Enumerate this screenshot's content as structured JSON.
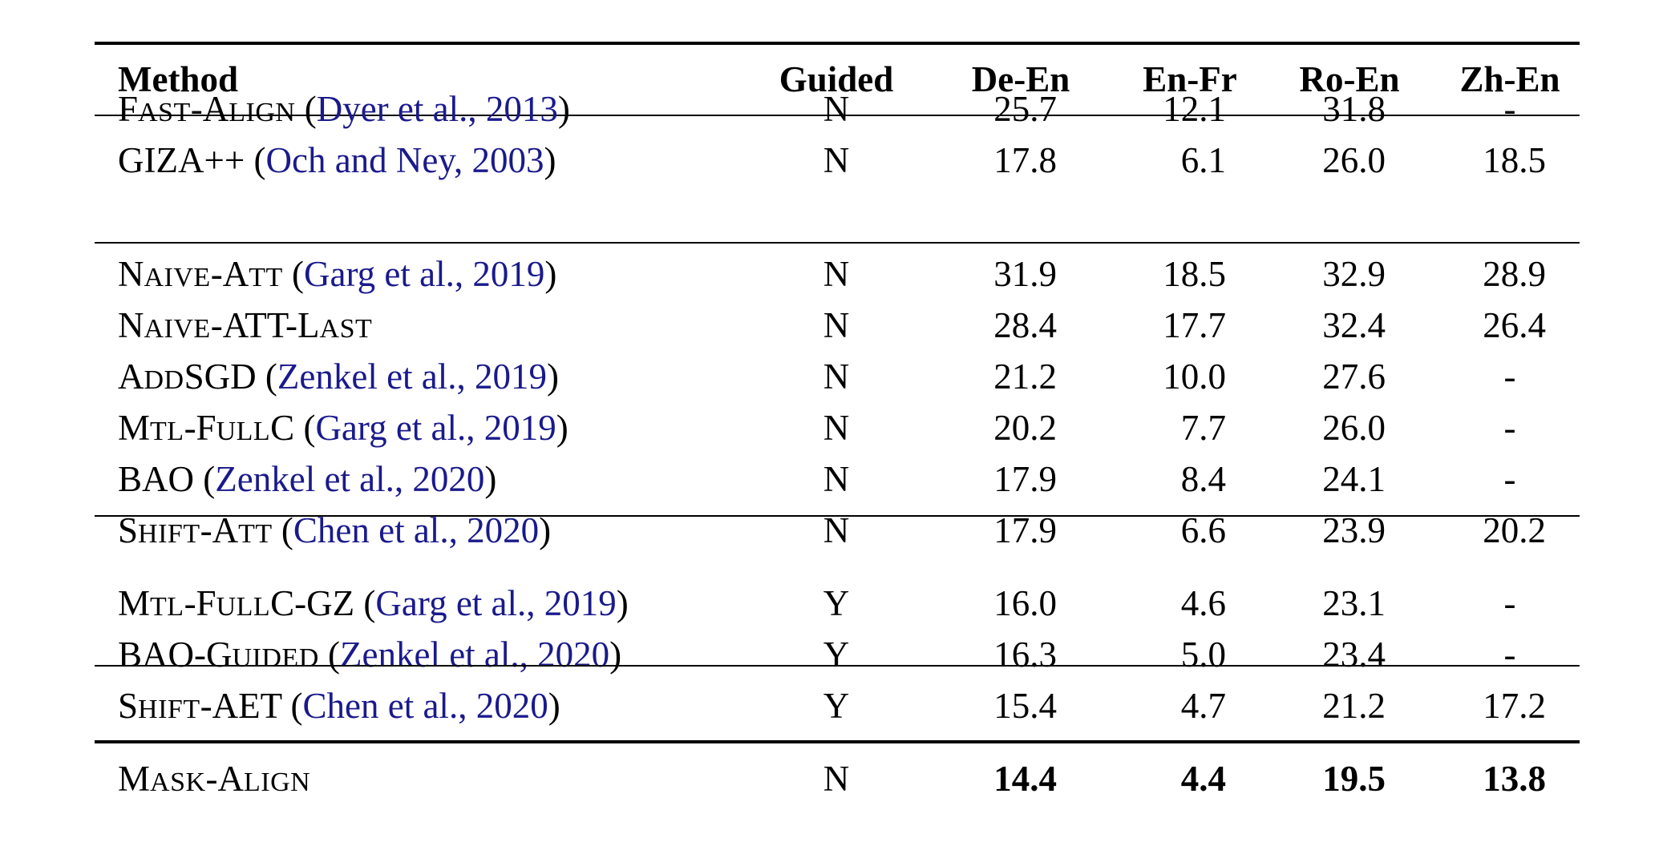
{
  "header": {
    "method": "Method",
    "guided": "Guided",
    "de_en": "De-En",
    "en_fr": "En-Fr",
    "ro_en": "Ro-En",
    "zh_en": "Zh-En"
  },
  "rows": [
    {
      "name_parts": [
        "F",
        "AST",
        "-A",
        "LIGN"
      ],
      "open": " (",
      "cite": "Dyer et al., 2013",
      "close": ")",
      "guided": "N",
      "de_en": "25.7",
      "en_fr": "12.1",
      "ro_en": "31.8",
      "zh_en": "-"
    },
    {
      "name_parts": [
        "GIZA++",
        "",
        "",
        ""
      ],
      "open": " (",
      "cite": "Och and Ney, 2003",
      "close": ")",
      "guided": "N",
      "de_en": "17.8",
      "en_fr": "6.1",
      "ro_en": "26.0",
      "zh_en": "18.5"
    },
    {
      "name_parts": [
        "N",
        "AIVE",
        "-A",
        "TT"
      ],
      "open": " (",
      "cite": "Garg et al., 2019",
      "close": ")",
      "guided": "N",
      "de_en": "31.9",
      "en_fr": "18.5",
      "ro_en": "32.9",
      "zh_en": "28.9"
    },
    {
      "name_parts": [
        "N",
        "AIVE",
        "-A",
        "TT-L",
        "AST"
      ],
      "open": "",
      "cite": "",
      "close": "",
      "guided": "N",
      "de_en": "28.4",
      "en_fr": "17.7",
      "ro_en": "32.4",
      "zh_en": "26.4"
    },
    {
      "name_parts": [
        "A",
        "DD",
        "SGD",
        ""
      ],
      "open": " (",
      "cite": "Zenkel et al., 2019",
      "close": ")",
      "guided": "N",
      "de_en": "21.2",
      "en_fr": "10.0",
      "ro_en": "27.6",
      "zh_en": "-"
    },
    {
      "name_parts": [
        "M",
        "TL",
        "-F",
        "ULL",
        "C"
      ],
      "open": " (",
      "cite": "Garg et al., 2019",
      "close": ")",
      "guided": "N",
      "de_en": "20.2",
      "en_fr": "7.7",
      "ro_en": "26.0",
      "zh_en": "-"
    },
    {
      "name_parts": [
        "BAO",
        "",
        "",
        ""
      ],
      "open": " (",
      "cite": "Zenkel et al., 2020",
      "close": ")",
      "guided": "N",
      "de_en": "17.9",
      "en_fr": "8.4",
      "ro_en": "24.1",
      "zh_en": "-"
    },
    {
      "name_parts": [
        "S",
        "HIFT",
        "-A",
        "TT"
      ],
      "open": " (",
      "cite": "Chen et al., 2020",
      "close": ")",
      "guided": "N",
      "de_en": "17.9",
      "en_fr": "6.6",
      "ro_en": "23.9",
      "zh_en": "20.2"
    },
    {
      "name_parts": [
        "M",
        "TL",
        "-F",
        "ULL",
        "C-GZ"
      ],
      "open": " (",
      "cite": "Garg et al., 2019",
      "close": ")",
      "guided": "Y",
      "de_en": "16.0",
      "en_fr": "4.6",
      "ro_en": "23.1",
      "zh_en": "-"
    },
    {
      "name_parts": [
        "BAO-G",
        "UIDED",
        "",
        ""
      ],
      "open": " (",
      "cite": "Zenkel et al., 2020",
      "close": ")",
      "guided": "Y",
      "de_en": "16.3",
      "en_fr": "5.0",
      "ro_en": "23.4",
      "zh_en": "-"
    },
    {
      "name_parts": [
        "S",
        "HIFT",
        "-AET",
        ""
      ],
      "open": " (",
      "cite": "Chen et al., 2020",
      "close": ")",
      "guided": "Y",
      "de_en": "15.4",
      "en_fr": "4.7",
      "ro_en": "21.2",
      "zh_en": "17.2"
    },
    {
      "name_parts": [
        "M",
        "ASK",
        "-A",
        "LIGN"
      ],
      "open": "",
      "cite": "",
      "close": "",
      "guided": "N",
      "de_en": "14.4",
      "en_fr": "4.4",
      "ro_en": "19.5",
      "zh_en": "13.8"
    }
  ]
}
